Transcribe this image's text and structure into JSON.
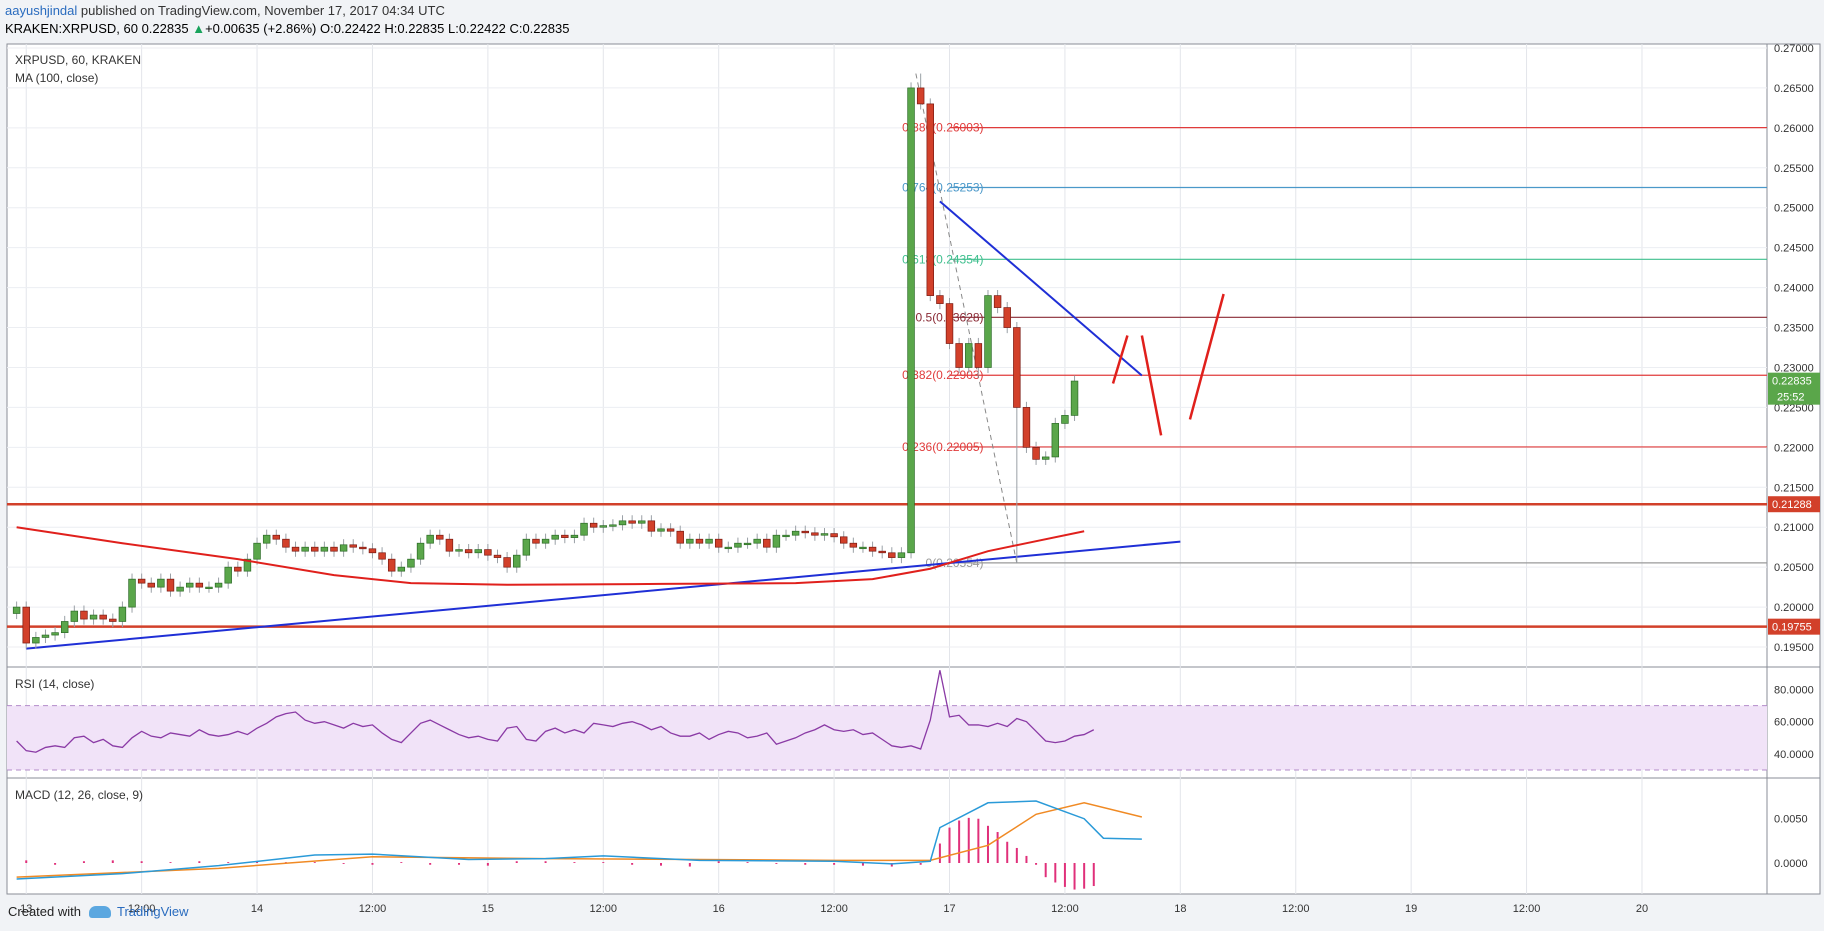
{
  "header": {
    "author": "aayushjindal",
    "published_text": " published on TradingView.com, November 17, 2017 04:34 UTC",
    "symbol_line": "KRAKEN:XRPUSD, 60",
    "last_price": "0.22835",
    "change": "+0.00635 (+2.86%)",
    "o_label": "O:",
    "o_value": "0.22422",
    "h_label": "H:",
    "h_value": "0.22835",
    "l_label": "L:",
    "l_value": "0.22422",
    "c_label": "C:",
    "c_value": "0.22835"
  },
  "footer": {
    "created_with": "Created with",
    "brand": "TradingView"
  },
  "chart_data": [
    {
      "type": "candlestick",
      "title": "XRPUSD, 60, KRAKEN",
      "indicator": "MA (100, close)",
      "ylim": [
        0.1925,
        0.2705
      ],
      "y_ticks": [
        "0.27000",
        "0.26500",
        "0.26000",
        "0.25500",
        "0.25000",
        "0.24500",
        "0.24000",
        "0.23500",
        "0.23000",
        "0.22500",
        "0.22000",
        "0.21500",
        "0.21000",
        "0.20500",
        "0.20000",
        "0.19500"
      ],
      "x_time_range_hours": [
        -2,
        181
      ],
      "x_ticks": [
        {
          "h": 0,
          "label": "13"
        },
        {
          "h": 12,
          "label": "12:00"
        },
        {
          "h": 24,
          "label": "14"
        },
        {
          "h": 36,
          "label": "12:00"
        },
        {
          "h": 48,
          "label": "15"
        },
        {
          "h": 60,
          "label": "12:00"
        },
        {
          "h": 72,
          "label": "16"
        },
        {
          "h": 84,
          "label": "12:00"
        },
        {
          "h": 96,
          "label": "17"
        },
        {
          "h": 108,
          "label": "12:00"
        },
        {
          "h": 120,
          "label": "18"
        },
        {
          "h": 132,
          "label": "12:00"
        },
        {
          "h": 144,
          "label": "19"
        },
        {
          "h": 156,
          "label": "12:00"
        },
        {
          "h": 168,
          "label": "20"
        }
      ],
      "candle_start_hour": -1,
      "closes": [
        0.2,
        0.1955,
        0.1962,
        0.1965,
        0.1968,
        0.1982,
        0.1995,
        0.1985,
        0.199,
        0.1985,
        0.1982,
        0.2,
        0.2035,
        0.203,
        0.2025,
        0.2035,
        0.202,
        0.2025,
        0.203,
        0.2025,
        0.2025,
        0.203,
        0.205,
        0.2045,
        0.206,
        0.208,
        0.209,
        0.2085,
        0.2075,
        0.207,
        0.2075,
        0.207,
        0.2075,
        0.207,
        0.2078,
        0.2075,
        0.2073,
        0.2068,
        0.206,
        0.2045,
        0.205,
        0.206,
        0.208,
        0.209,
        0.2085,
        0.207,
        0.2072,
        0.2068,
        0.2072,
        0.2065,
        0.2062,
        0.205,
        0.2065,
        0.2085,
        0.208,
        0.2085,
        0.209,
        0.2087,
        0.209,
        0.2105,
        0.21,
        0.2102,
        0.2103,
        0.2108,
        0.2105,
        0.2108,
        0.2095,
        0.2098,
        0.2095,
        0.208,
        0.2085,
        0.208,
        0.2085,
        0.2075,
        0.2075,
        0.208,
        0.208,
        0.2085,
        0.2075,
        0.209,
        0.209,
        0.2095,
        0.2093,
        0.209,
        0.2092,
        0.2088,
        0.208,
        0.2075,
        0.2075,
        0.207,
        0.2068,
        0.2062,
        0.2068,
        0.265,
        0.263,
        0.239,
        0.238,
        0.233,
        0.23,
        0.233,
        0.23,
        0.239,
        0.2375,
        0.235,
        0.225,
        0.22,
        0.2185,
        0.2188,
        0.223,
        0.224,
        0.2283
      ],
      "highs_marked": {
        "spike_high": 0.2668,
        "spike_low": 0.2055
      },
      "ma100": [
        [
          -1,
          0.21
        ],
        [
          10,
          0.208
        ],
        [
          22,
          0.206
        ],
        [
          32,
          0.204
        ],
        [
          40,
          0.203
        ],
        [
          50,
          0.2028
        ],
        [
          66,
          0.2029
        ],
        [
          80,
          0.203
        ],
        [
          88,
          0.2035
        ],
        [
          94,
          0.2048
        ],
        [
          100,
          0.207
        ],
        [
          104,
          0.208
        ],
        [
          110,
          0.2095
        ]
      ],
      "trendlines": [
        {
          "name": "support",
          "points": [
            [
              0,
              0.1948
            ],
            [
              120,
              0.2082
            ]
          ]
        },
        {
          "name": "resistance",
          "points": [
            [
              95,
              0.2508
            ],
            [
              116,
              0.229
            ]
          ]
        }
      ],
      "horizontal_levels": [
        {
          "value": 0.21288,
          "label": "0.21288"
        },
        {
          "value": 0.19755,
          "label": "0.19755"
        }
      ],
      "fibonacci": [
        {
          "ratio": "0.886",
          "value": "0.26003",
          "level": 0.26003
        },
        {
          "ratio": "0.764",
          "value": "0.25253",
          "level": 0.25253
        },
        {
          "ratio": "0.618",
          "value": "0.24354",
          "level": 0.24354
        },
        {
          "ratio": "0.5",
          "value": "0.23628",
          "level": 0.23628
        },
        {
          "ratio": "0.382",
          "value": "0.22903",
          "level": 0.22903
        },
        {
          "ratio": "0.236",
          "value": "0.22005",
          "level": 0.22005
        },
        {
          "ratio": "0",
          "value": "0.20554",
          "level": 0.20554
        }
      ],
      "price_badges": {
        "price": "0.22835",
        "countdown": "25:52"
      },
      "projection_path": [
        [
          113,
          0.228
        ],
        [
          114.5,
          0.234
        ],
        [
          null,
          null
        ],
        [
          116,
          0.234
        ],
        [
          118,
          0.2215
        ],
        [
          null,
          null
        ],
        [
          121,
          0.2235
        ],
        [
          124.5,
          0.2392
        ]
      ]
    },
    {
      "type": "line",
      "title": "RSI (14, close)",
      "ylim": [
        25,
        94
      ],
      "y_ticks": [
        "80.0000",
        "60.0000",
        "40.0000"
      ],
      "band": [
        30,
        70
      ],
      "values": [
        48,
        42,
        41,
        44,
        45,
        44,
        50,
        51,
        47,
        49,
        45,
        44,
        50,
        54,
        51,
        50,
        53,
        52,
        51,
        55,
        52,
        51,
        52,
        54,
        52,
        56,
        59,
        63,
        65,
        66,
        61,
        59,
        60,
        58,
        56,
        59,
        57,
        58,
        53,
        49,
        47,
        53,
        59,
        61,
        58,
        55,
        52,
        50,
        51,
        49,
        48,
        56,
        57,
        49,
        48,
        54,
        56,
        53,
        55,
        53,
        59,
        58,
        57,
        59,
        60,
        58,
        55,
        57,
        53,
        51,
        51,
        53,
        49,
        52,
        54,
        53,
        50,
        51,
        53,
        46,
        48,
        50,
        53,
        55,
        58,
        55,
        54,
        55,
        52,
        53,
        49,
        45,
        44,
        45,
        43,
        61,
        92,
        63,
        64,
        58,
        58,
        57,
        59,
        57,
        62,
        60,
        54,
        48,
        47,
        48,
        51,
        52,
        55
      ]
    },
    {
      "type": "line+histogram",
      "title": "MACD (12, 26, close, 9)",
      "ylim": [
        -0.0035,
        0.0096
      ],
      "y_ticks": [
        "0.0050",
        "0.0000"
      ],
      "macd_line": [
        [
          -1,
          -0.0018
        ],
        [
          10,
          -0.0012
        ],
        [
          20,
          -0.0003
        ],
        [
          30,
          0.0009
        ],
        [
          36,
          0.001
        ],
        [
          46,
          0.0004
        ],
        [
          54,
          0.0005
        ],
        [
          60,
          0.0008
        ],
        [
          70,
          0.0003
        ],
        [
          84,
          0.0002
        ],
        [
          90,
          -0.0001
        ],
        [
          94,
          0.0002
        ],
        [
          95,
          0.004
        ],
        [
          100,
          0.0068
        ],
        [
          105,
          0.007
        ],
        [
          108,
          0.0058
        ],
        [
          110,
          0.005
        ],
        [
          112,
          0.0028
        ],
        [
          116,
          0.0027
        ]
      ],
      "signal_line": [
        [
          -1,
          -0.0016
        ],
        [
          20,
          -0.0006
        ],
        [
          36,
          0.0007
        ],
        [
          54,
          0.0005
        ],
        [
          84,
          0.0003
        ],
        [
          94,
          0.0003
        ],
        [
          100,
          0.002
        ],
        [
          105,
          0.0055
        ],
        [
          110,
          0.0068
        ],
        [
          116,
          0.0052
        ]
      ],
      "histogram": [
        [
          0,
          0.0003
        ],
        [
          3,
          -0.0002
        ],
        [
          6,
          0.0002
        ],
        [
          9,
          0.0003
        ],
        [
          12,
          0.0002
        ],
        [
          15,
          0.0001
        ],
        [
          18,
          0.0002
        ],
        [
          21,
          0.0001
        ],
        [
          24,
          0.0002
        ],
        [
          27,
          0.0001
        ],
        [
          30,
          0.0001
        ],
        [
          33,
          -0.0001
        ],
        [
          36,
          -0.0002
        ],
        [
          39,
          0.0001
        ],
        [
          42,
          -0.0002
        ],
        [
          45,
          -0.0002
        ],
        [
          48,
          -0.0003
        ],
        [
          51,
          0.0002
        ],
        [
          54,
          0.0002
        ],
        [
          57,
          0.0001
        ],
        [
          60,
          0.0001
        ],
        [
          63,
          -0.0002
        ],
        [
          66,
          -0.0003
        ],
        [
          69,
          -0.0004
        ],
        [
          72,
          0.0002
        ],
        [
          75,
          0.0001
        ],
        [
          78,
          -0.0001
        ],
        [
          81,
          -0.0002
        ],
        [
          84,
          -0.0002
        ],
        [
          87,
          -0.0003
        ],
        [
          90,
          -0.0004
        ],
        [
          93,
          -0.0002
        ],
        [
          95,
          0.0022
        ],
        [
          96,
          0.004
        ],
        [
          97,
          0.0048
        ],
        [
          98,
          0.0051
        ],
        [
          99,
          0.005
        ],
        [
          100,
          0.0042
        ],
        [
          101,
          0.0035
        ],
        [
          102,
          0.0024
        ],
        [
          103,
          0.0017
        ],
        [
          104,
          0.0008
        ],
        [
          105,
          -0.0002
        ],
        [
          106,
          -0.0016
        ],
        [
          107,
          -0.0022
        ],
        [
          108,
          -0.0027
        ],
        [
          109,
          -0.003
        ],
        [
          110,
          -0.0029
        ],
        [
          111,
          -0.0026
        ]
      ]
    }
  ]
}
